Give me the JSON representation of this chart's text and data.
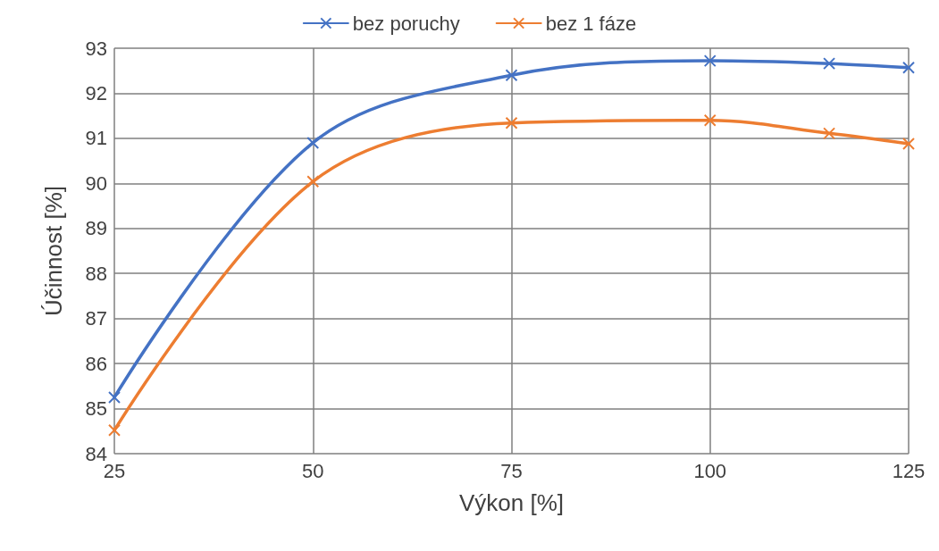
{
  "chart_data": {
    "type": "line",
    "xlabel": "Výkon [%]",
    "ylabel": "Účinnost [%]",
    "xlim": [
      25,
      125
    ],
    "xticks": [
      25,
      50,
      75,
      100,
      125
    ],
    "ylim": [
      84,
      93
    ],
    "yticks": [
      84,
      85,
      86,
      87,
      88,
      89,
      90,
      91,
      92,
      93
    ],
    "grid": true,
    "legend": "top",
    "marker": "cross",
    "line_style": "solid",
    "series": [
      {
        "name": "bez poruchy",
        "color": "#4472c4",
        "x": [
          25,
          50,
          75,
          100,
          115,
          125
        ],
        "values": [
          85.25,
          90.9,
          92.4,
          92.72,
          92.66,
          92.57
        ]
      },
      {
        "name": "bez 1 fáze",
        "color": "#ed7d31",
        "x": [
          25,
          50,
          75,
          100,
          115,
          125
        ],
        "values": [
          84.52,
          90.04,
          91.34,
          91.4,
          91.11,
          90.88
        ]
      }
    ]
  }
}
